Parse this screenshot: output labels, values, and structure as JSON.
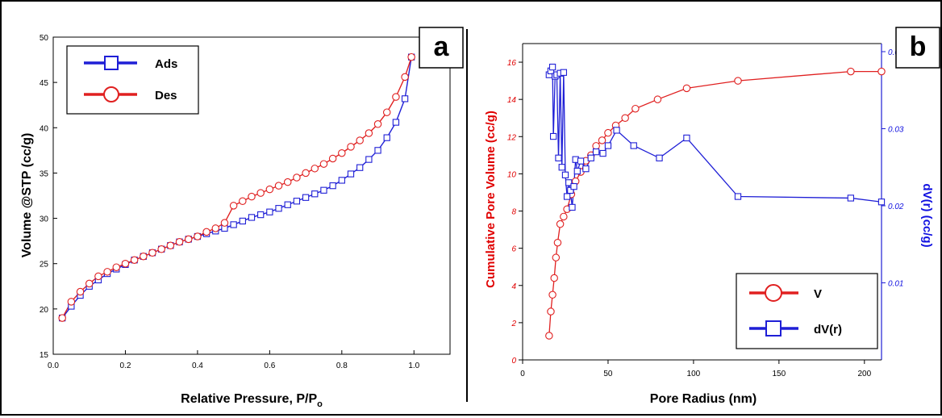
{
  "chart_data": [
    {
      "panel": "a",
      "type": "line",
      "xlabel": "Relative Pressure, P/P",
      "xlabel_sub": "o",
      "ylabel": "Volume @STP (cc/g)",
      "xlim": [
        0.0,
        1.1
      ],
      "ylim": [
        15,
        50
      ],
      "xticks": [
        "0.0",
        "0.2",
        "0.4",
        "0.6",
        "0.8",
        "1.0"
      ],
      "yticks": [
        "15",
        "20",
        "25",
        "30",
        "35",
        "40",
        "45",
        "50"
      ],
      "legend_position": "top-left",
      "series": [
        {
          "name": "Ads",
          "color": "#1f1fd6",
          "marker": "square",
          "x": [
            0.025,
            0.05,
            0.075,
            0.1,
            0.125,
            0.15,
            0.175,
            0.2,
            0.225,
            0.25,
            0.275,
            0.3,
            0.325,
            0.35,
            0.375,
            0.4,
            0.425,
            0.45,
            0.475,
            0.5,
            0.525,
            0.55,
            0.575,
            0.6,
            0.625,
            0.65,
            0.675,
            0.7,
            0.725,
            0.75,
            0.775,
            0.8,
            0.825,
            0.85,
            0.875,
            0.9,
            0.925,
            0.95,
            0.975,
            0.993
          ],
          "y": [
            19.0,
            20.3,
            21.5,
            22.5,
            23.2,
            23.9,
            24.4,
            24.9,
            25.4,
            25.8,
            26.2,
            26.6,
            27.0,
            27.4,
            27.7,
            28.0,
            28.3,
            28.6,
            28.9,
            29.3,
            29.7,
            30.1,
            30.4,
            30.7,
            31.1,
            31.5,
            31.9,
            32.3,
            32.7,
            33.1,
            33.6,
            34.2,
            34.9,
            35.6,
            36.5,
            37.5,
            38.9,
            40.6,
            43.2,
            47.8
          ]
        },
        {
          "name": "Des",
          "color": "#e02020",
          "marker": "circle",
          "x": [
            0.025,
            0.05,
            0.075,
            0.1,
            0.125,
            0.15,
            0.175,
            0.2,
            0.225,
            0.25,
            0.275,
            0.3,
            0.325,
            0.35,
            0.375,
            0.4,
            0.425,
            0.45,
            0.475,
            0.5,
            0.525,
            0.55,
            0.575,
            0.6,
            0.625,
            0.65,
            0.675,
            0.7,
            0.725,
            0.75,
            0.775,
            0.8,
            0.825,
            0.85,
            0.875,
            0.9,
            0.925,
            0.95,
            0.975,
            0.993
          ],
          "y": [
            19.0,
            20.8,
            21.9,
            22.8,
            23.6,
            24.1,
            24.6,
            25.0,
            25.4,
            25.8,
            26.2,
            26.6,
            27.0,
            27.4,
            27.7,
            28.0,
            28.5,
            28.9,
            29.5,
            31.4,
            31.9,
            32.4,
            32.8,
            33.2,
            33.6,
            34.0,
            34.5,
            35.0,
            35.5,
            36.0,
            36.6,
            37.2,
            37.9,
            38.6,
            39.4,
            40.4,
            41.7,
            43.4,
            45.6,
            47.8
          ]
        }
      ]
    },
    {
      "panel": "b",
      "type": "line",
      "xlabel": "Pore Radius (nm)",
      "ylabel": "Cumulative Pore Volume (cc/g)",
      "ylabel_right": "dV(r) (cc/g)",
      "xlim": [
        0,
        210
      ],
      "ylim": [
        0,
        17
      ],
      "ylim_right": [
        0,
        0.04
      ],
      "xticks": [
        "0",
        "50",
        "100",
        "150",
        "200"
      ],
      "yticks": [
        "0",
        "2",
        "4",
        "6",
        "8",
        "10",
        "12",
        "14",
        "16"
      ],
      "yticks_right": [
        "0.01",
        "0.02",
        "0.03",
        "0.04"
      ],
      "legend_position": "bottom-right",
      "series": [
        {
          "name": "V",
          "color": "#e02020",
          "marker": "circle",
          "axis": "left",
          "x": [
            15.5,
            16.5,
            17.5,
            18.5,
            19.5,
            20.5,
            22,
            24,
            26,
            28.5,
            31,
            34,
            37,
            40,
            43,
            46.5,
            50,
            54.5,
            60,
            66,
            79,
            96,
            126,
            192,
            210
          ],
          "y": [
            1.3,
            2.6,
            3.5,
            4.4,
            5.5,
            6.3,
            7.3,
            7.7,
            8.1,
            8.9,
            9.6,
            10.1,
            10.7,
            11.0,
            11.5,
            11.8,
            12.2,
            12.6,
            13.0,
            13.5,
            14.0,
            14.6,
            15.0,
            15.5,
            15.5
          ]
        },
        {
          "name": "dV(r)",
          "color": "#1f1fd6",
          "marker": "square",
          "axis": "right",
          "x": [
            15.5,
            16.5,
            17.5,
            18,
            19,
            20,
            21,
            22,
            23,
            24,
            25,
            26,
            27,
            28,
            29,
            30,
            31,
            32,
            34,
            37,
            40,
            43,
            47,
            50,
            55,
            65,
            80,
            96,
            126,
            192,
            210
          ],
          "y": [
            0.037,
            0.0375,
            0.038,
            0.029,
            0.0368,
            0.037,
            0.0262,
            0.0372,
            0.025,
            0.0373,
            0.024,
            0.0212,
            0.023,
            0.022,
            0.0198,
            0.0225,
            0.026,
            0.0245,
            0.0258,
            0.0248,
            0.0262,
            0.027,
            0.0268,
            0.0278,
            0.0298,
            0.0278,
            0.0262,
            0.0288,
            0.0212,
            0.021,
            0.0205
          ]
        }
      ]
    }
  ]
}
